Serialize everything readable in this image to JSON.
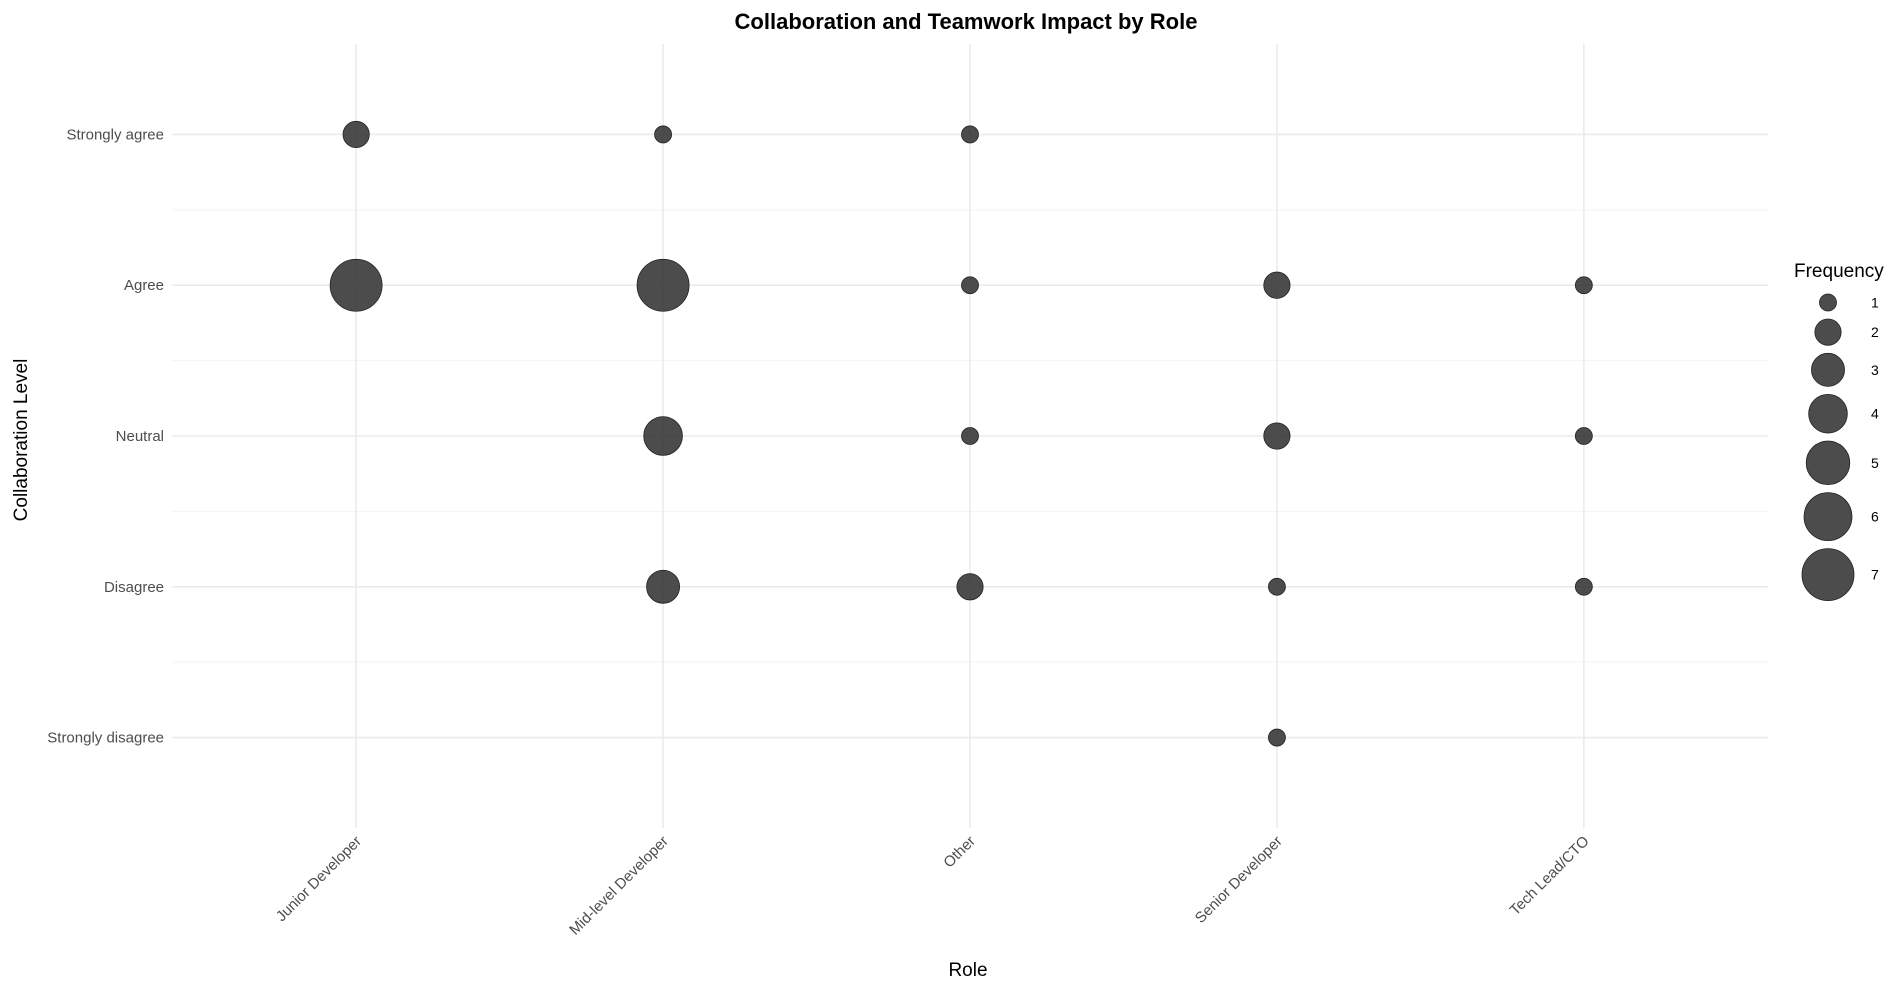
{
  "chart_data": {
    "type": "scatter",
    "title": "Collaboration and Teamwork Impact by Role",
    "xlabel": "Role",
    "ylabel": "Collaboration Level",
    "x_categories": [
      "Junior Developer",
      "Mid-level Developer",
      "Other",
      "Senior Developer",
      "Tech Lead/CTO"
    ],
    "y_categories": [
      "Strongly disagree",
      "Disagree",
      "Neutral",
      "Agree",
      "Strongly agree"
    ],
    "size_legend": {
      "title": "Frequency",
      "values": [
        1,
        2,
        3,
        4,
        5,
        6,
        7
      ],
      "labels": [
        "1",
        "2",
        "3",
        "4",
        "5",
        "6",
        "7"
      ]
    },
    "points": [
      {
        "x": "Junior Developer",
        "y": "Strongly agree",
        "frequency": 2
      },
      {
        "x": "Junior Developer",
        "y": "Agree",
        "frequency": 7
      },
      {
        "x": "Mid-level Developer",
        "y": "Strongly agree",
        "frequency": 1
      },
      {
        "x": "Mid-level Developer",
        "y": "Agree",
        "frequency": 7
      },
      {
        "x": "Mid-level Developer",
        "y": "Neutral",
        "frequency": 4
      },
      {
        "x": "Mid-level Developer",
        "y": "Disagree",
        "frequency": 3
      },
      {
        "x": "Other",
        "y": "Strongly agree",
        "frequency": 1
      },
      {
        "x": "Other",
        "y": "Agree",
        "frequency": 1
      },
      {
        "x": "Other",
        "y": "Neutral",
        "frequency": 1
      },
      {
        "x": "Other",
        "y": "Disagree",
        "frequency": 2
      },
      {
        "x": "Senior Developer",
        "y": "Agree",
        "frequency": 2
      },
      {
        "x": "Senior Developer",
        "y": "Neutral",
        "frequency": 2
      },
      {
        "x": "Senior Developer",
        "y": "Disagree",
        "frequency": 1
      },
      {
        "x": "Senior Developer",
        "y": "Strongly disagree",
        "frequency": 1
      },
      {
        "x": "Tech Lead/CTO",
        "y": "Agree",
        "frequency": 1
      },
      {
        "x": "Tech Lead/CTO",
        "y": "Neutral",
        "frequency": 1
      },
      {
        "x": "Tech Lead/CTO",
        "y": "Disagree",
        "frequency": 1
      }
    ],
    "grid": true,
    "legend_position": "right",
    "colors": {
      "point": "#333333",
      "grid": "#ebebeb",
      "tick_text": "#4d4d4d"
    }
  }
}
